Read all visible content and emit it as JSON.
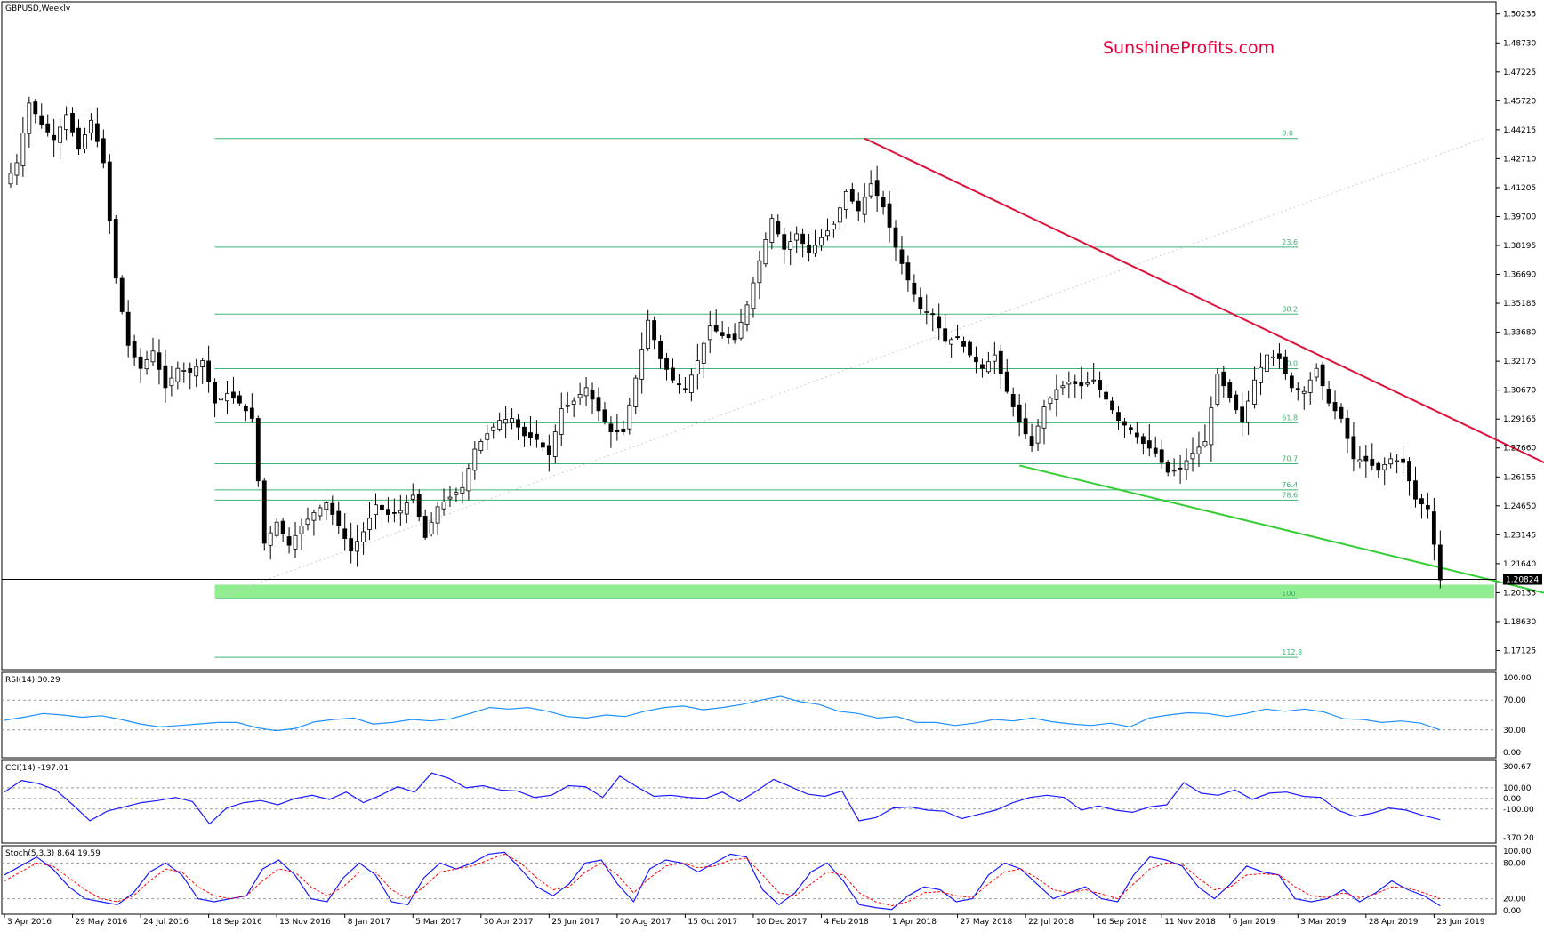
{
  "window": {
    "title": "GBPUSD,Weekly"
  },
  "watermark": "SunshineProfits.com",
  "current_price_label": "1.20824",
  "colors": {
    "bull_candle": "#ffffff",
    "bear_candle": "#000000",
    "fib_line": "#3cb371",
    "fib_zone": "#90ee90",
    "resistance_line": "#dc143c",
    "support_line": "#32cd32",
    "rsi_line": "#1e90ff",
    "cci_line": "#1a1aff",
    "stoch_main": "#1a1aff",
    "stoch_signal": "#ff0000",
    "watermark": "#e8003c"
  },
  "chart_data": [
    {
      "type": "candlestick",
      "title": "GBPUSD,Weekly",
      "ylim": [
        1.15,
        1.505
      ],
      "x_tick_labels": [
        "3 Apr 2016",
        "29 May 2016",
        "24 Jul 2016",
        "18 Sep 2016",
        "13 Nov 2016",
        "8 Jan 2017",
        "5 Mar 2017",
        "30 Apr 2017",
        "25 Jun 2017",
        "20 Aug 2017",
        "15 Oct 2017",
        "10 Dec 2017",
        "4 Feb 2018",
        "1 Apr 2018",
        "27 May 2018",
        "22 Jul 2018",
        "16 Sep 2018",
        "11 Nov 2018",
        "6 Jan 2019",
        "3 Mar 2019",
        "28 Apr 2019",
        "23 Jun 2019"
      ],
      "y_tick_labels": [
        "1.50235",
        "1.48730",
        "1.47225",
        "1.45720",
        "1.44215",
        "1.42710",
        "1.41205",
        "1.39700",
        "1.38195",
        "1.36690",
        "1.35185",
        "1.33680",
        "1.32175",
        "1.30670",
        "1.29165",
        "1.27660",
        "1.26155",
        "1.24650",
        "1.23145",
        "1.21640",
        "1.20135",
        "1.18630",
        "1.17125"
      ],
      "price_path": [
        [
          0,
          1.414
        ],
        [
          2,
          1.425
        ],
        [
          4,
          1.456
        ],
        [
          6,
          1.445
        ],
        [
          8,
          1.437
        ],
        [
          10,
          1.45
        ],
        [
          12,
          1.432
        ],
        [
          14,
          1.447
        ],
        [
          16,
          1.425
        ],
        [
          18,
          1.365
        ],
        [
          20,
          1.33
        ],
        [
          22,
          1.318
        ],
        [
          24,
          1.327
        ],
        [
          26,
          1.308
        ],
        [
          28,
          1.318
        ],
        [
          30,
          1.316
        ],
        [
          32,
          1.322
        ],
        [
          34,
          1.3
        ],
        [
          36,
          1.305
        ],
        [
          38,
          1.3
        ],
        [
          40,
          1.292
        ],
        [
          42,
          1.227
        ],
        [
          44,
          1.238
        ],
        [
          46,
          1.226
        ],
        [
          48,
          1.236
        ],
        [
          50,
          1.243
        ],
        [
          52,
          1.248
        ],
        [
          54,
          1.236
        ],
        [
          56,
          1.223
        ],
        [
          58,
          1.233
        ],
        [
          60,
          1.247
        ],
        [
          62,
          1.242
        ],
        [
          64,
          1.244
        ],
        [
          66,
          1.252
        ],
        [
          68,
          1.23
        ],
        [
          70,
          1.246
        ],
        [
          72,
          1.251
        ],
        [
          74,
          1.256
        ],
        [
          76,
          1.276
        ],
        [
          78,
          1.284
        ],
        [
          80,
          1.291
        ],
        [
          82,
          1.292
        ],
        [
          84,
          1.283
        ],
        [
          86,
          1.281
        ],
        [
          88,
          1.273
        ],
        [
          90,
          1.297
        ],
        [
          92,
          1.301
        ],
        [
          94,
          1.308
        ],
        [
          96,
          1.296
        ],
        [
          98,
          1.285
        ],
        [
          100,
          1.285
        ],
        [
          102,
          1.313
        ],
        [
          104,
          1.343
        ],
        [
          106,
          1.323
        ],
        [
          108,
          1.312
        ],
        [
          110,
          1.307
        ],
        [
          112,
          1.322
        ],
        [
          114,
          1.34
        ],
        [
          116,
          1.335
        ],
        [
          118,
          1.333
        ],
        [
          120,
          1.351
        ],
        [
          122,
          1.374
        ],
        [
          124,
          1.396
        ],
        [
          126,
          1.38
        ],
        [
          128,
          1.388
        ],
        [
          130,
          1.378
        ],
        [
          132,
          1.386
        ],
        [
          134,
          1.393
        ],
        [
          136,
          1.41
        ],
        [
          138,
          1.4
        ],
        [
          140,
          1.414
        ],
        [
          142,
          1.402
        ],
        [
          144,
          1.381
        ],
        [
          146,
          1.364
        ],
        [
          148,
          1.349
        ],
        [
          150,
          1.346
        ],
        [
          152,
          1.332
        ],
        [
          154,
          1.334
        ],
        [
          156,
          1.325
        ],
        [
          158,
          1.318
        ],
        [
          160,
          1.325
        ],
        [
          162,
          1.306
        ],
        [
          164,
          1.29
        ],
        [
          166,
          1.278
        ],
        [
          168,
          1.298
        ],
        [
          170,
          1.307
        ],
        [
          172,
          1.311
        ],
        [
          174,
          1.309
        ],
        [
          176,
          1.312
        ],
        [
          178,
          1.302
        ],
        [
          180,
          1.291
        ],
        [
          182,
          1.286
        ],
        [
          184,
          1.279
        ],
        [
          186,
          1.274
        ],
        [
          188,
          1.264
        ],
        [
          190,
          1.266
        ],
        [
          192,
          1.274
        ],
        [
          194,
          1.28
        ],
        [
          196,
          1.315
        ],
        [
          198,
          1.303
        ],
        [
          200,
          1.29
        ],
        [
          202,
          1.312
        ],
        [
          204,
          1.325
        ],
        [
          206,
          1.323
        ],
        [
          208,
          1.308
        ],
        [
          210,
          1.306
        ],
        [
          212,
          1.318
        ],
        [
          214,
          1.3
        ],
        [
          216,
          1.292
        ],
        [
          218,
          1.271
        ],
        [
          220,
          1.27
        ],
        [
          222,
          1.265
        ],
        [
          224,
          1.271
        ],
        [
          226,
          1.269
        ],
        [
          228,
          1.25
        ],
        [
          230,
          1.245
        ],
        [
          232,
          1.208
        ]
      ],
      "fibonacci": {
        "levels": [
          {
            "label": "0.0",
            "price": 1.4376
          },
          {
            "label": "23.6",
            "price": 1.3811
          },
          {
            "label": "38.2",
            "price": 1.3462
          },
          {
            "label": "50.0",
            "price": 1.3179
          },
          {
            "label": "61.8",
            "price": 1.2897
          },
          {
            "label": "70.7",
            "price": 1.2684
          },
          {
            "label": "76.4",
            "price": 1.2548
          },
          {
            "label": "78.6",
            "price": 1.2495
          },
          {
            "label": "100",
            "price": 1.1983
          },
          {
            "label": "112.8",
            "price": 1.1677
          }
        ],
        "support_zone": [
          1.1986,
          1.2055
        ]
      },
      "trendlines": {
        "resistance": [
          [
            139,
            1.4376
          ],
          [
            283,
            1.2165
          ]
        ],
        "support": [
          [
            164,
            1.2675
          ],
          [
            283,
            1.1745
          ]
        ],
        "fib_anchor": [
          [
            34,
            1.1983
          ],
          [
            239,
            1.4376
          ]
        ]
      },
      "current_price": 1.20824,
      "grid": false
    },
    {
      "type": "line",
      "title": "RSI(14) 30.29",
      "ylim": [
        0,
        100
      ],
      "y_tick_labels": [
        "100.00",
        "70.00",
        "30.00",
        "0.00"
      ],
      "levels": [
        70,
        30
      ],
      "values": [
        43,
        47,
        52,
        50,
        47,
        49,
        44,
        38,
        34,
        36,
        38,
        40,
        40,
        33,
        29,
        32,
        41,
        44,
        46,
        38,
        40,
        44,
        42,
        45,
        52,
        60,
        58,
        60,
        55,
        48,
        46,
        50,
        48,
        55,
        60,
        62,
        57,
        60,
        64,
        70,
        75,
        68,
        64,
        55,
        52,
        46,
        48,
        40,
        40,
        36,
        39,
        44,
        42,
        46,
        41,
        38,
        36,
        39,
        34,
        46,
        50,
        53,
        52,
        48,
        52,
        58,
        55,
        58,
        54,
        45,
        44,
        40,
        42,
        39,
        30
      ]
    },
    {
      "type": "line",
      "title": "CCI(14) -197.01",
      "ylim": [
        -370.2,
        300.67
      ],
      "y_tick_labels": [
        "300.67",
        "100.00",
        "0.00",
        "-100.00",
        "-370.20"
      ],
      "levels": [
        100,
        0,
        -100
      ],
      "values": [
        60,
        170,
        140,
        80,
        -60,
        -210,
        -120,
        -80,
        -40,
        -20,
        10,
        -30,
        -240,
        -90,
        -40,
        -20,
        -60,
        0,
        30,
        -10,
        60,
        -40,
        30,
        110,
        60,
        240,
        190,
        100,
        120,
        80,
        70,
        10,
        30,
        120,
        110,
        10,
        210,
        110,
        20,
        30,
        10,
        0,
        60,
        -30,
        70,
        180,
        110,
        40,
        20,
        70,
        -210,
        -180,
        -90,
        -80,
        -110,
        -120,
        -190,
        -150,
        -110,
        -40,
        10,
        30,
        10,
        -110,
        -70,
        -110,
        -130,
        -80,
        -60,
        150,
        50,
        30,
        80,
        -10,
        50,
        60,
        20,
        10,
        -110,
        -170,
        -140,
        -90,
        -110,
        -160,
        -200
      ]
    },
    {
      "type": "line",
      "title": "Stoch(5,3,3) 8.64 19.59",
      "ylim": [
        0,
        100
      ],
      "y_tick_labels": [
        "100.00",
        "80.00",
        "20.00",
        "0.00"
      ],
      "levels": [
        80,
        20
      ],
      "series": [
        {
          "values": [
            60,
            75,
            90,
            70,
            40,
            20,
            15,
            10,
            30,
            65,
            80,
            60,
            20,
            15,
            20,
            25,
            70,
            85,
            60,
            20,
            15,
            55,
            80,
            60,
            15,
            10,
            55,
            80,
            70,
            80,
            95,
            98,
            70,
            40,
            25,
            45,
            80,
            85,
            45,
            15,
            70,
            85,
            80,
            65,
            80,
            95,
            90,
            35,
            10,
            30,
            65,
            80,
            50,
            10,
            5,
            2,
            25,
            40,
            35,
            15,
            20,
            60,
            80,
            70,
            45,
            20,
            30,
            40,
            20,
            15,
            60,
            90,
            85,
            75,
            40,
            20,
            45,
            75,
            65,
            60,
            20,
            15,
            20,
            35,
            15,
            30,
            50,
            35,
            25,
            8
          ]
        },
        {
          "values": [
            50,
            65,
            80,
            75,
            55,
            35,
            20,
            15,
            25,
            50,
            70,
            65,
            40,
            25,
            20,
            25,
            50,
            70,
            65,
            40,
            25,
            40,
            65,
            65,
            35,
            20,
            40,
            65,
            70,
            75,
            85,
            95,
            80,
            55,
            35,
            40,
            65,
            80,
            60,
            30,
            55,
            75,
            80,
            72,
            75,
            85,
            88,
            60,
            30,
            25,
            45,
            65,
            60,
            30,
            15,
            8,
            15,
            30,
            32,
            25,
            22,
            45,
            65,
            70,
            55,
            35,
            30,
            35,
            28,
            20,
            45,
            70,
            80,
            78,
            55,
            35,
            40,
            60,
            62,
            60,
            40,
            25,
            22,
            30,
            22,
            28,
            40,
            38,
            30,
            20
          ]
        }
      ]
    }
  ]
}
